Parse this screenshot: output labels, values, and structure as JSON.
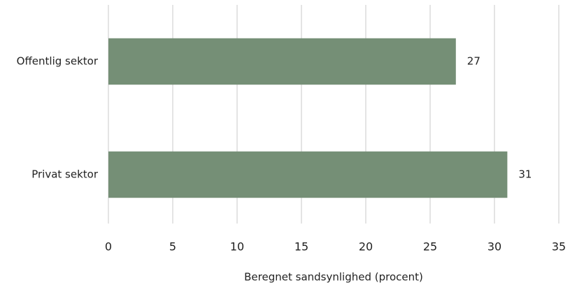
{
  "chart_data": {
    "type": "bar",
    "orientation": "horizontal",
    "categories": [
      "Offentlig sektor",
      "Privat sektor"
    ],
    "values": [
      27,
      31
    ],
    "color": "#758f76",
    "xlabel": "Beregnet sandsynlighed (procent)",
    "xlim": [
      0,
      35
    ],
    "xticks": [
      0,
      5,
      10,
      15,
      20,
      25,
      30,
      35
    ],
    "grid": true
  }
}
